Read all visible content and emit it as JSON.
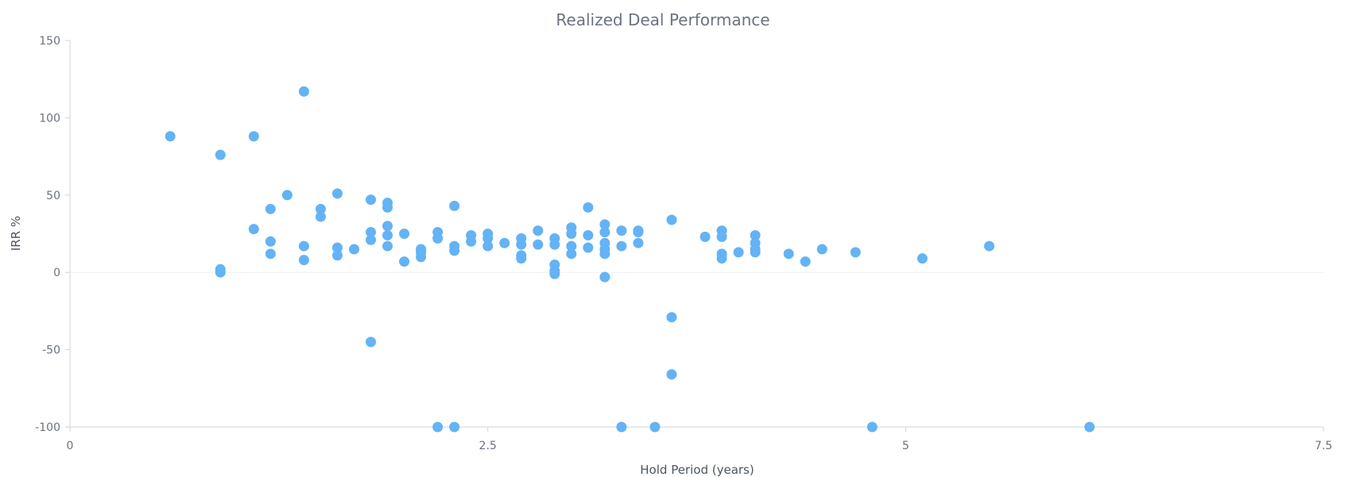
{
  "chart_data": {
    "type": "scatter",
    "title": "Realized Deal Performance",
    "xlabel": "Hold Period (years)",
    "ylabel": "IRR %",
    "xlim": [
      0,
      7.5
    ],
    "ylim": [
      -100,
      150
    ],
    "x_ticks": [
      0,
      2.5,
      5,
      7.5
    ],
    "x_tick_labels": [
      "0",
      "2.5",
      "5",
      "7.5"
    ],
    "y_ticks": [
      -100,
      -50,
      0,
      50,
      100,
      150
    ],
    "y_tick_labels": [
      "-100",
      "-50",
      "0",
      "50",
      "100",
      "150"
    ],
    "grid": false,
    "zero_line": true,
    "marker_color": "#63b3f5",
    "series": [
      {
        "points": [
          [
            0.6,
            88
          ],
          [
            0.9,
            76
          ],
          [
            0.9,
            2
          ],
          [
            0.9,
            0
          ],
          [
            1.1,
            88
          ],
          [
            1.1,
            28
          ],
          [
            1.2,
            41
          ],
          [
            1.2,
            20
          ],
          [
            1.2,
            12
          ],
          [
            1.3,
            50
          ],
          [
            1.4,
            117
          ],
          [
            1.4,
            17
          ],
          [
            1.4,
            8
          ],
          [
            1.5,
            41
          ],
          [
            1.5,
            36
          ],
          [
            1.6,
            51
          ],
          [
            1.6,
            16
          ],
          [
            1.6,
            11
          ],
          [
            1.7,
            15
          ],
          [
            1.8,
            47
          ],
          [
            1.8,
            26
          ],
          [
            1.8,
            21
          ],
          [
            1.8,
            -45
          ],
          [
            1.9,
            45
          ],
          [
            1.9,
            42
          ],
          [
            1.9,
            30
          ],
          [
            1.9,
            24
          ],
          [
            1.9,
            17
          ],
          [
            2.0,
            25
          ],
          [
            2.0,
            7
          ],
          [
            2.1,
            15
          ],
          [
            2.1,
            13
          ],
          [
            2.1,
            10
          ],
          [
            2.2,
            26
          ],
          [
            2.2,
            22
          ],
          [
            2.2,
            -100
          ],
          [
            2.3,
            43
          ],
          [
            2.3,
            17
          ],
          [
            2.3,
            14
          ],
          [
            2.3,
            -100
          ],
          [
            2.4,
            24
          ],
          [
            2.4,
            20
          ],
          [
            2.5,
            25
          ],
          [
            2.5,
            22
          ],
          [
            2.5,
            17
          ],
          [
            2.6,
            19
          ],
          [
            2.7,
            22
          ],
          [
            2.7,
            18
          ],
          [
            2.7,
            11
          ],
          [
            2.7,
            9
          ],
          [
            2.8,
            27
          ],
          [
            2.8,
            18
          ],
          [
            2.9,
            22
          ],
          [
            2.9,
            18
          ],
          [
            2.9,
            5
          ],
          [
            2.9,
            1
          ],
          [
            2.9,
            -1
          ],
          [
            3.0,
            29
          ],
          [
            3.0,
            25
          ],
          [
            3.0,
            17
          ],
          [
            3.0,
            12
          ],
          [
            3.1,
            42
          ],
          [
            3.1,
            24
          ],
          [
            3.1,
            16
          ],
          [
            3.2,
            31
          ],
          [
            3.2,
            26
          ],
          [
            3.2,
            19
          ],
          [
            3.2,
            15
          ],
          [
            3.2,
            12
          ],
          [
            3.2,
            -3
          ],
          [
            3.3,
            27
          ],
          [
            3.3,
            17
          ],
          [
            3.3,
            -100
          ],
          [
            3.4,
            27
          ],
          [
            3.4,
            26
          ],
          [
            3.4,
            19
          ],
          [
            3.5,
            -100
          ],
          [
            3.6,
            34
          ],
          [
            3.6,
            -29
          ],
          [
            3.6,
            -66
          ],
          [
            3.8,
            23
          ],
          [
            3.9,
            27
          ],
          [
            3.9,
            23
          ],
          [
            3.9,
            12
          ],
          [
            3.9,
            9
          ],
          [
            4.0,
            13
          ],
          [
            4.1,
            24
          ],
          [
            4.1,
            19
          ],
          [
            4.1,
            15
          ],
          [
            4.1,
            13
          ],
          [
            4.3,
            12
          ],
          [
            4.4,
            7
          ],
          [
            4.5,
            15
          ],
          [
            4.7,
            13
          ],
          [
            4.8,
            -100
          ],
          [
            5.1,
            9
          ],
          [
            5.5,
            17
          ],
          [
            6.1,
            -100
          ]
        ]
      }
    ]
  }
}
